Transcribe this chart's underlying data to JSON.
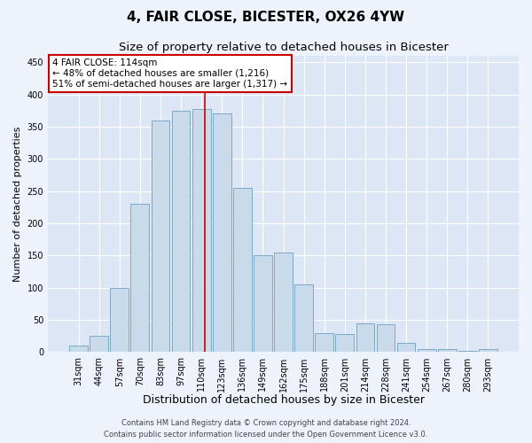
{
  "title": "4, FAIR CLOSE, BICESTER, OX26 4YW",
  "subtitle": "Size of property relative to detached houses in Bicester",
  "xlabel": "Distribution of detached houses by size in Bicester",
  "ylabel": "Number of detached properties",
  "categories": [
    "31sqm",
    "44sqm",
    "57sqm",
    "70sqm",
    "83sqm",
    "97sqm",
    "110sqm",
    "123sqm",
    "136sqm",
    "149sqm",
    "162sqm",
    "175sqm",
    "188sqm",
    "201sqm",
    "214sqm",
    "228sqm",
    "241sqm",
    "254sqm",
    "267sqm",
    "280sqm",
    "293sqm"
  ],
  "values": [
    10,
    25,
    100,
    230,
    360,
    375,
    378,
    370,
    255,
    150,
    155,
    105,
    30,
    28,
    45,
    43,
    15,
    5,
    5,
    2,
    5
  ],
  "bar_color": "#c9daea",
  "bar_edge_color": "#7aaac8",
  "red_line_x": 6.15,
  "annotation_text": "4 FAIR CLOSE: 114sqm\n← 48% of detached houses are smaller (1,216)\n51% of semi-detached houses are larger (1,317) →",
  "annotation_box_color": "#ffffff",
  "annotation_box_edge_color": "#cc0000",
  "ylim": [
    0,
    460
  ],
  "yticks": [
    0,
    50,
    100,
    150,
    200,
    250,
    300,
    350,
    400,
    450
  ],
  "footer_line1": "Contains HM Land Registry data © Crown copyright and database right 2024.",
  "footer_line2": "Contains public sector information licensed under the Open Government Licence v3.0.",
  "bg_color": "#eef2fb",
  "plot_bg_color": "#dde6f5",
  "grid_color": "#ffffff",
  "title_fontsize": 11,
  "subtitle_fontsize": 9.5,
  "tick_fontsize": 7,
  "ylabel_fontsize": 8,
  "xlabel_fontsize": 9,
  "footer_fontsize": 6
}
